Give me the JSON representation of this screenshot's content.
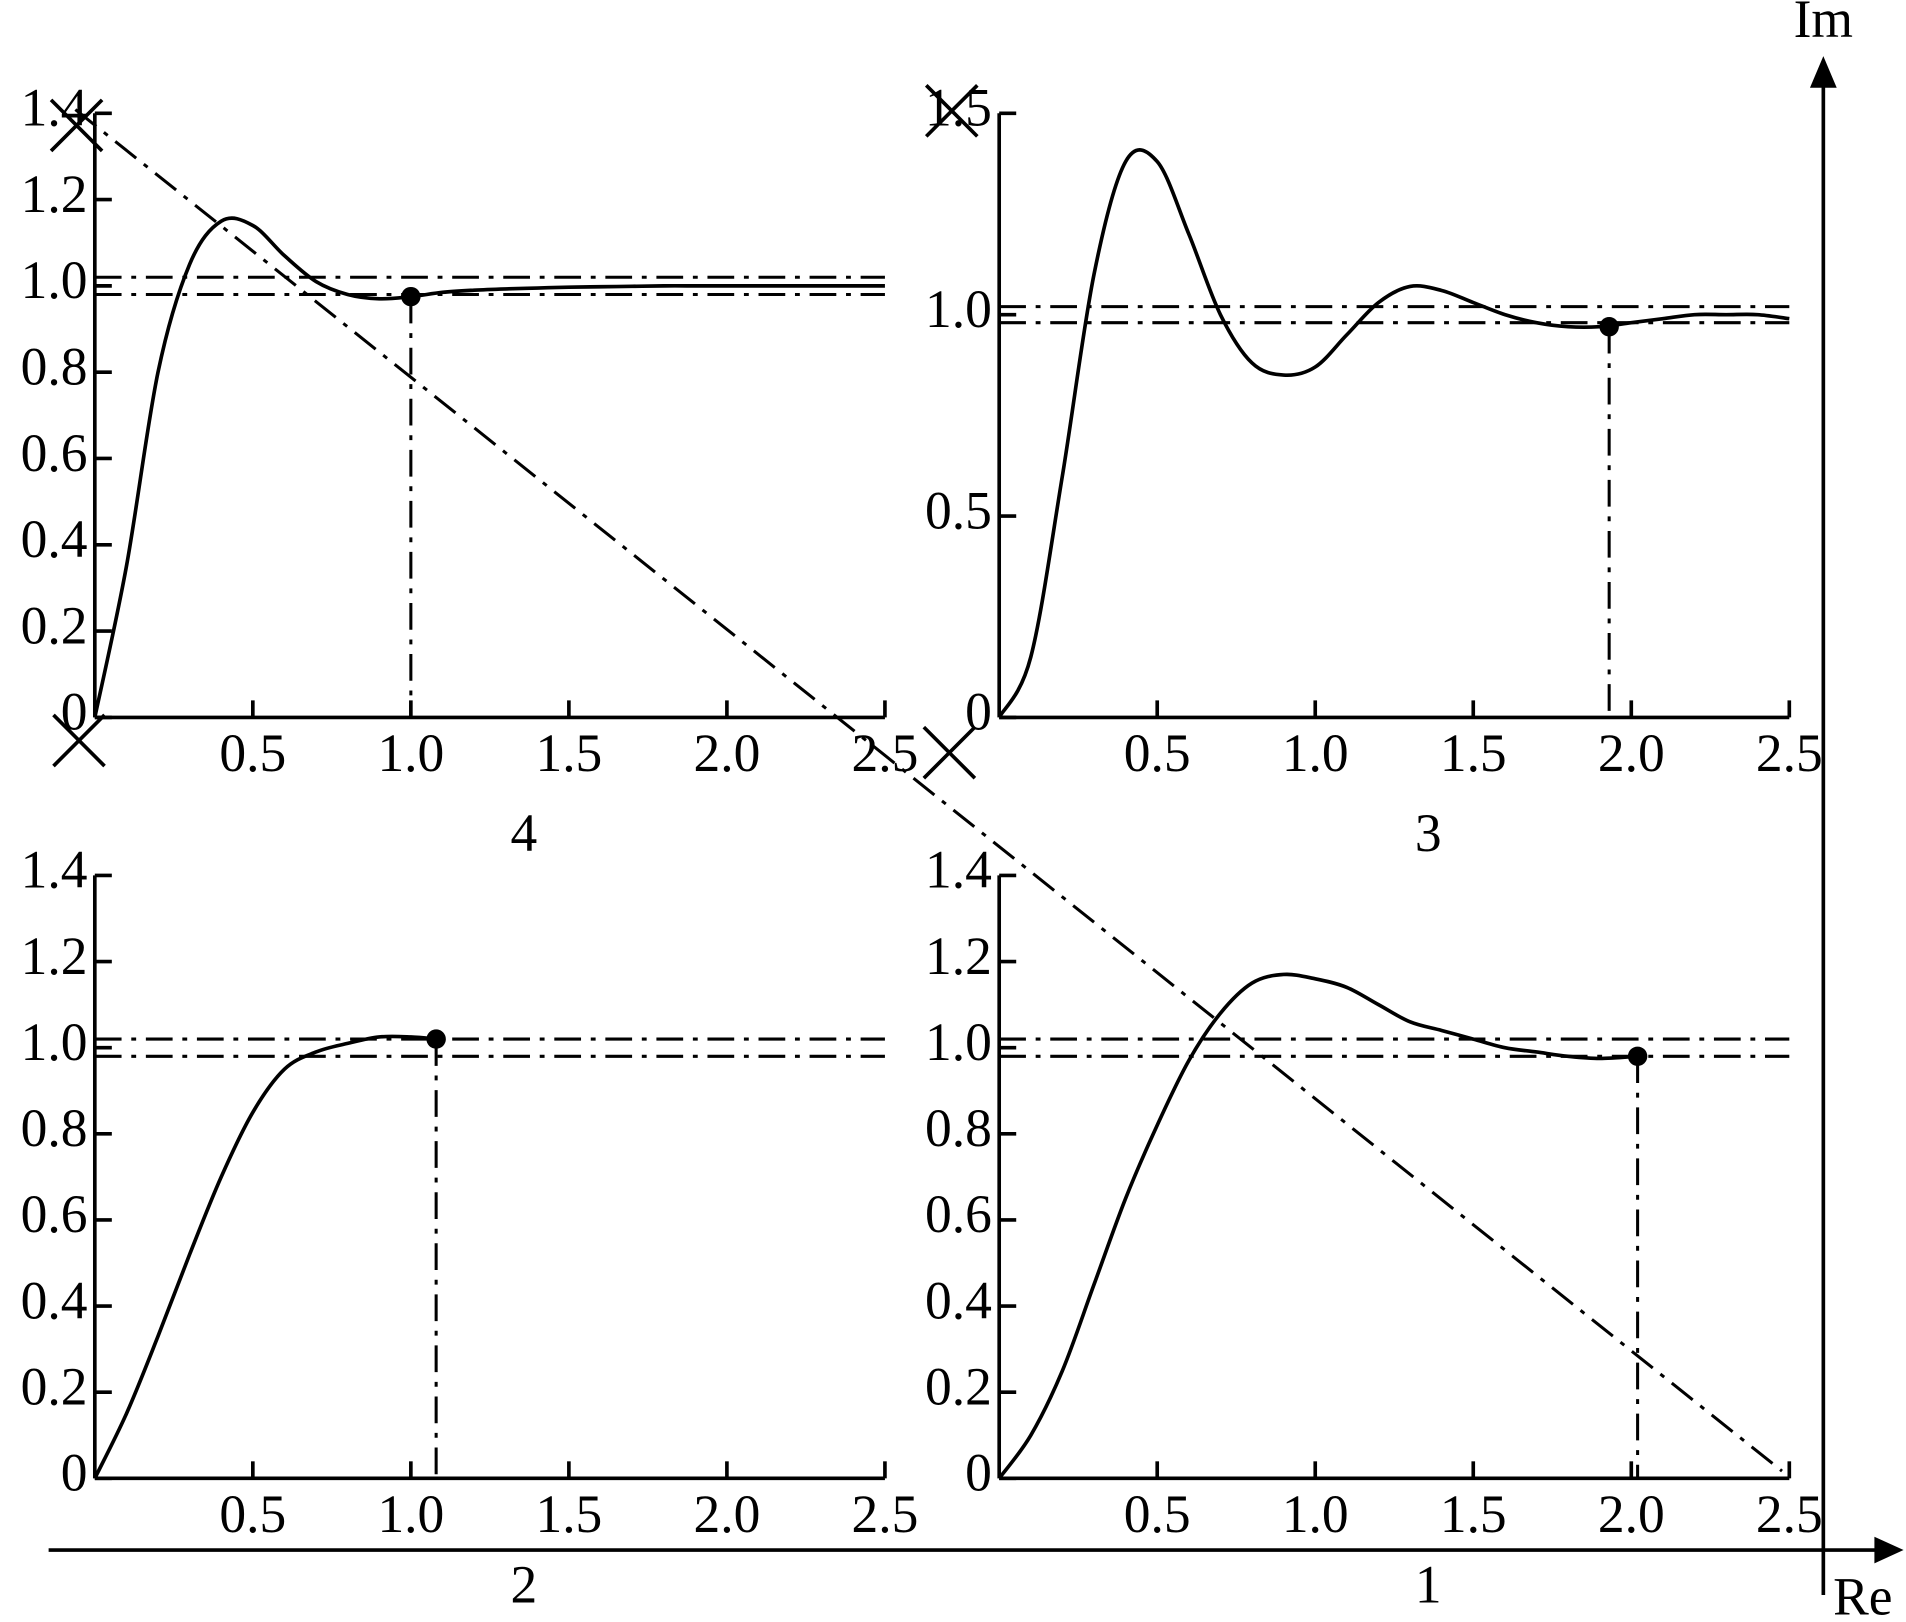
{
  "chart_data": [
    {
      "type": "line",
      "caption": "4",
      "color": "#000000",
      "x": [
        0,
        0.1,
        0.2,
        0.3,
        0.4,
        0.5,
        0.6,
        0.7,
        0.8,
        0.9,
        1.0,
        1.1,
        1.2,
        1.3,
        1.4,
        1.5,
        1.6,
        1.7,
        1.8,
        1.9,
        2.0,
        2.1,
        2.2,
        2.3,
        2.4,
        2.5
      ],
      "values": [
        0,
        0.35,
        0.8,
        1.05,
        1.15,
        1.14,
        1.07,
        1.01,
        0.98,
        0.97,
        0.975,
        0.985,
        0.99,
        0.993,
        0.995,
        0.997,
        0.998,
        0.999,
        1.0,
        1.0,
        1.0,
        1.0,
        1.0,
        1.0,
        1.0,
        1.0
      ],
      "xlim": [
        0,
        2.5
      ],
      "ylim": [
        0,
        1.4
      ],
      "xticks": [
        0.5,
        {
          "value": 1,
          "label": "1.0"
        },
        1.5,
        {
          "value": 2,
          "label": "2.0"
        },
        2.5
      ],
      "yticks": [
        0,
        0.2,
        0.4,
        0.6,
        0.8,
        {
          "value": 1,
          "label": "1.0"
        },
        1.2,
        1.4
      ],
      "tolerance_band": [
        0.98,
        1.02
      ],
      "settling_point": {
        "x": 1.0,
        "y": 0.975
      }
    },
    {
      "type": "line",
      "caption": "3",
      "color": "#000000",
      "x": [
        0,
        0.1,
        0.2,
        0.3,
        0.4,
        0.5,
        0.6,
        0.7,
        0.8,
        0.9,
        1.0,
        1.1,
        1.2,
        1.3,
        1.4,
        1.5,
        1.6,
        1.7,
        1.8,
        1.9,
        2.0,
        2.1,
        2.2,
        2.3,
        2.4,
        2.5
      ],
      "values": [
        0,
        0.15,
        0.6,
        1.1,
        1.38,
        1.38,
        1.2,
        1.0,
        0.88,
        0.85,
        0.87,
        0.95,
        1.03,
        1.07,
        1.06,
        1.03,
        1.0,
        0.98,
        0.97,
        0.97,
        0.98,
        0.99,
        1.0,
        1.0,
        1.0,
        0.99
      ],
      "xlim": [
        0,
        2.5
      ],
      "ylim": [
        0,
        1.5
      ],
      "xticks": [
        0.5,
        {
          "value": 1,
          "label": "1.0"
        },
        1.5,
        {
          "value": 2,
          "label": "2.0"
        },
        2.5
      ],
      "yticks": [
        0,
        0.5,
        {
          "value": 1,
          "label": "1.0"
        },
        1.5
      ],
      "tolerance_band": [
        0.98,
        1.02
      ],
      "settling_point": {
        "x": 1.93,
        "y": 0.97
      }
    },
    {
      "type": "line",
      "caption": "2",
      "color": "#000000",
      "x": [
        0,
        0.1,
        0.2,
        0.3,
        0.4,
        0.5,
        0.6,
        0.7,
        0.8,
        0.9,
        1.0,
        1.08
      ],
      "values": [
        0,
        0.15,
        0.33,
        0.52,
        0.7,
        0.85,
        0.95,
        0.99,
        1.01,
        1.025,
        1.025,
        1.02
      ],
      "xlim": [
        0,
        2.5
      ],
      "ylim": [
        0,
        1.4
      ],
      "xticks": [
        0.5,
        {
          "value": 1,
          "label": "1.0"
        },
        1.5,
        {
          "value": 2,
          "label": "2.0"
        },
        2.5
      ],
      "yticks": [
        0,
        0.2,
        0.4,
        0.6,
        0.8,
        {
          "value": 1,
          "label": "1.0"
        },
        1.2,
        1.4
      ],
      "tolerance_band": [
        0.98,
        1.02
      ],
      "settling_point": {
        "x": 1.08,
        "y": 1.02
      }
    },
    {
      "type": "line",
      "caption": "1",
      "color": "#000000",
      "x": [
        0,
        0.1,
        0.2,
        0.3,
        0.4,
        0.5,
        0.6,
        0.7,
        0.8,
        0.9,
        1.0,
        1.1,
        1.2,
        1.3,
        1.4,
        1.5,
        1.6,
        1.7,
        1.8,
        1.9,
        2.02
      ],
      "values": [
        0,
        0.1,
        0.25,
        0.45,
        0.65,
        0.82,
        0.97,
        1.08,
        1.15,
        1.17,
        1.16,
        1.14,
        1.1,
        1.06,
        1.04,
        1.02,
        1.0,
        0.99,
        0.98,
        0.975,
        0.98
      ],
      "xlim": [
        0,
        2.5
      ],
      "ylim": [
        0,
        1.4
      ],
      "xticks": [
        0.5,
        {
          "value": 1,
          "label": "1.0"
        },
        1.5,
        {
          "value": 2,
          "label": "2.0"
        },
        2.5
      ],
      "yticks": [
        0,
        0.2,
        0.4,
        0.6,
        0.8,
        {
          "value": 1,
          "label": "1.0"
        },
        1.2,
        1.4
      ],
      "tolerance_band": [
        0.98,
        1.02
      ],
      "settling_point": {
        "x": 2.02,
        "y": 0.98
      }
    }
  ],
  "figure": {
    "real_axis_label": "Re",
    "imag_axis_label": "Im"
  }
}
